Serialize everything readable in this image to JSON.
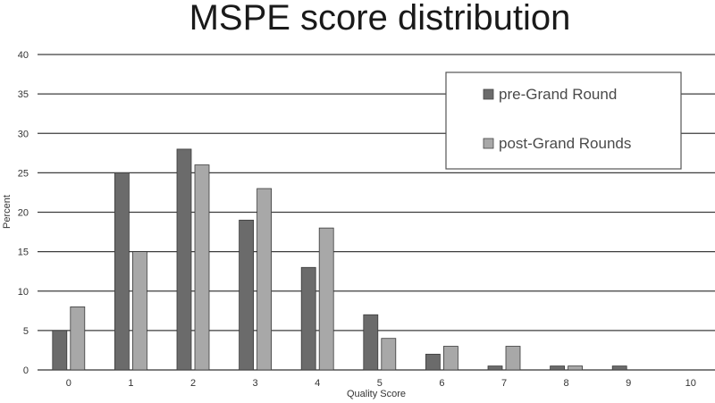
{
  "chart_data": {
    "type": "bar",
    "title": "MSPE score distribution",
    "xlabel": "Quality Score",
    "ylabel": "Percent",
    "categories": [
      "0",
      "1",
      "2",
      "3",
      "4",
      "5",
      "6",
      "7",
      "8",
      "9",
      "10"
    ],
    "ylim": [
      0,
      40
    ],
    "yticks": [
      "0",
      "5",
      "10",
      "15",
      "20",
      "25",
      "30",
      "35",
      "40"
    ],
    "grid": true,
    "legend_position": "top-right",
    "series": [
      {
        "name": "pre-Grand Round",
        "color": "#6b6b6b",
        "values": [
          5,
          25,
          28,
          19,
          13,
          7,
          2,
          0.5,
          0.5,
          0.5,
          0
        ]
      },
      {
        "name": "post-Grand Rounds",
        "color": "#a8a8a8",
        "values": [
          8,
          15,
          26,
          23,
          18,
          4,
          3,
          3,
          0.5,
          0,
          0
        ]
      }
    ]
  }
}
